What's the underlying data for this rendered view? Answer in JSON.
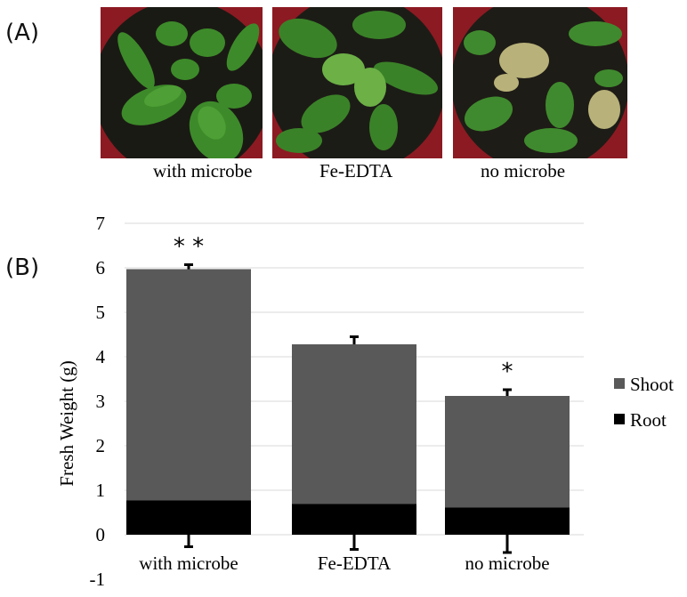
{
  "panel_a": {
    "label": "(A)",
    "photos": [
      {
        "caption": "with microbe",
        "description_icon": "healthy-plant-photo"
      },
      {
        "caption": "Fe-EDTA",
        "description_icon": "plant-photo"
      },
      {
        "caption": "no microbe",
        "description_icon": "chlorotic-plant-photo"
      }
    ]
  },
  "panel_b": {
    "label": "(B)"
  },
  "chart_data": {
    "type": "bar",
    "stacked": true,
    "categories": [
      "with microbe",
      "Fe-EDTA",
      "no microbe"
    ],
    "series": [
      {
        "name": "Root",
        "values": [
          0.77,
          0.69,
          0.61
        ],
        "color": "#000000",
        "error_down": [
          0.27,
          0.33,
          0.4
        ]
      },
      {
        "name": "Shoot",
        "values": [
          5.2,
          3.59,
          2.51
        ],
        "color": "#595959",
        "error_up": [
          0.1,
          0.17,
          0.14
        ]
      }
    ],
    "totals": [
      5.97,
      4.28,
      3.12
    ],
    "significance": [
      "* *",
      "",
      "*"
    ],
    "xlabel": "",
    "ylabel": "Fresh Weight (g)",
    "ylim": [
      -1,
      7
    ],
    "yticks": [
      -1,
      0,
      1,
      2,
      3,
      4,
      5,
      6,
      7
    ],
    "grid": true,
    "legend": [
      "Shoot",
      "Root"
    ],
    "legend_position": "right"
  }
}
